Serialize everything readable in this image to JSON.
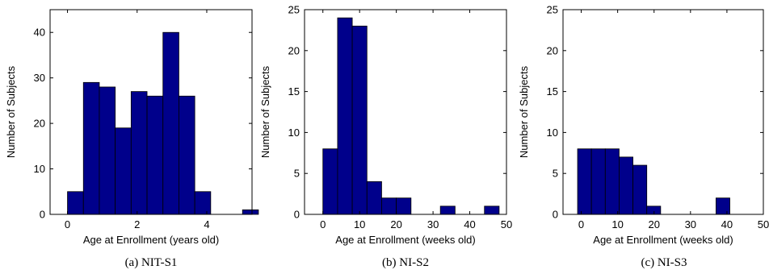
{
  "chart_data": [
    {
      "type": "bar",
      "caption": "(a)  NIT-S1",
      "xlabel": "Age at Enrollment (years old)",
      "ylabel": "Number of Subjects",
      "xlim": [
        -0.5,
        5.3
      ],
      "ylim": [
        0,
        45
      ],
      "xticks": [
        0,
        2,
        4
      ],
      "yticks": [
        0,
        10,
        20,
        30,
        40
      ],
      "bin_width": 0.457,
      "bins": [
        {
          "x": 0.0,
          "value": 5
        },
        {
          "x": 0.457,
          "value": 29
        },
        {
          "x": 0.914,
          "value": 28
        },
        {
          "x": 1.371,
          "value": 19
        },
        {
          "x": 1.828,
          "value": 27
        },
        {
          "x": 2.285,
          "value": 26
        },
        {
          "x": 2.742,
          "value": 40
        },
        {
          "x": 3.199,
          "value": 26
        },
        {
          "x": 3.656,
          "value": 5
        },
        {
          "x": 4.113,
          "value": 0
        },
        {
          "x": 4.57,
          "value": 0
        },
        {
          "x": 5.027,
          "value": 1
        }
      ],
      "bar_color": "#00008b",
      "edge_color": "#000000"
    },
    {
      "type": "bar",
      "caption": "(b)  NI-S2",
      "xlabel": "Age at Enrollment (weeks old)",
      "ylabel": "Number of Subjects",
      "xlim": [
        -5,
        50
      ],
      "ylim": [
        0,
        25
      ],
      "xticks": [
        0,
        10,
        20,
        30,
        40,
        50
      ],
      "yticks": [
        0,
        5,
        10,
        15,
        20,
        25
      ],
      "bin_width": 4,
      "bins": [
        {
          "x": 0,
          "value": 8
        },
        {
          "x": 4,
          "value": 24
        },
        {
          "x": 8,
          "value": 23
        },
        {
          "x": 12,
          "value": 4
        },
        {
          "x": 16,
          "value": 2
        },
        {
          "x": 20,
          "value": 2
        },
        {
          "x": 24,
          "value": 0
        },
        {
          "x": 28,
          "value": 0
        },
        {
          "x": 32,
          "value": 1
        },
        {
          "x": 36,
          "value": 0
        },
        {
          "x": 40,
          "value": 0
        },
        {
          "x": 44,
          "value": 1
        }
      ],
      "bar_color": "#00008b",
      "edge_color": "#000000"
    },
    {
      "type": "bar",
      "caption": "(c)  NI-S3",
      "xlabel": "Age at Enrollment (weeks old)",
      "ylabel": "Number of Subjects",
      "xlim": [
        -5,
        50
      ],
      "ylim": [
        0,
        25
      ],
      "xticks": [
        0,
        10,
        20,
        30,
        40,
        50
      ],
      "yticks": [
        0,
        5,
        10,
        15,
        20,
        25
      ],
      "bin_width": 3.8,
      "bins": [
        {
          "x": -1,
          "value": 8
        },
        {
          "x": 2.8,
          "value": 8
        },
        {
          "x": 6.6,
          "value": 8
        },
        {
          "x": 10.4,
          "value": 7
        },
        {
          "x": 14.2,
          "value": 6
        },
        {
          "x": 18,
          "value": 1
        },
        {
          "x": 21.8,
          "value": 0
        },
        {
          "x": 25.6,
          "value": 0
        },
        {
          "x": 29.4,
          "value": 0
        },
        {
          "x": 33.2,
          "value": 0
        },
        {
          "x": 37,
          "value": 2
        }
      ],
      "bar_color": "#00008b",
      "edge_color": "#000000"
    }
  ]
}
